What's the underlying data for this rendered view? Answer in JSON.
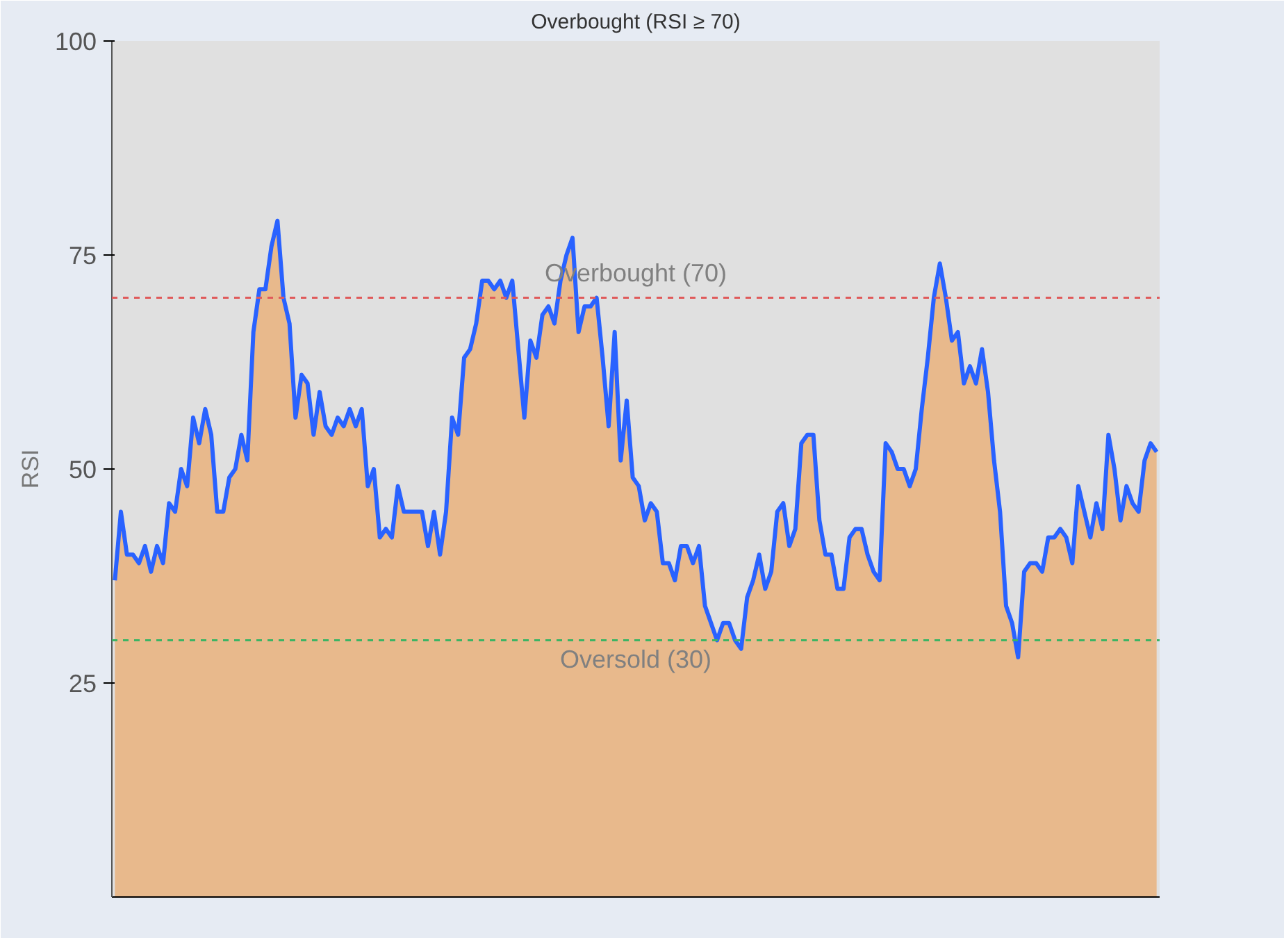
{
  "chart_data": {
    "type": "area",
    "title": "Overbought (RSI ≥ 70)",
    "ylabel": "RSI",
    "categories": [
      null,
      null,
      null,
      null,
      null,
      null,
      null,
      null,
      null,
      null,
      null,
      null,
      null,
      null,
      null,
      null,
      null,
      null,
      null,
      null,
      null,
      null,
      null,
      null,
      null,
      null,
      null,
      null,
      null,
      null,
      null,
      null,
      null,
      null,
      null,
      null,
      null,
      null,
      null,
      null,
      null,
      null,
      null,
      null,
      null,
      null,
      null,
      null,
      null,
      null,
      null,
      null,
      null,
      null,
      null,
      null,
      null,
      null,
      null,
      null,
      null,
      null,
      null,
      null,
      null,
      null,
      null,
      null,
      null,
      null,
      null,
      null,
      null,
      null,
      null,
      null,
      null,
      null,
      null,
      null,
      null,
      null,
      null,
      null,
      null,
      null,
      null,
      null,
      null,
      null,
      null,
      null,
      null,
      null,
      null,
      null,
      null,
      null,
      null,
      null,
      null,
      null,
      null,
      null,
      null,
      null,
      null,
      null,
      null,
      null,
      null,
      null,
      null,
      null,
      null,
      null,
      null,
      null,
      null,
      null,
      null,
      null,
      null,
      null,
      null,
      null,
      null,
      null,
      null,
      null,
      null,
      null,
      null,
      null,
      null,
      null,
      null,
      null,
      null,
      null,
      null,
      null,
      null,
      null,
      null,
      null,
      null,
      null,
      null,
      null,
      null,
      null,
      null,
      null,
      null,
      null,
      null,
      null,
      null,
      null,
      null,
      null,
      null,
      null,
      null,
      null,
      null,
      null,
      null,
      null,
      null,
      null,
      null,
      null
    ],
    "series": [
      {
        "color": "#e9b27c",
        "values": [
          37,
          45,
          40,
          40,
          39,
          41,
          38,
          41,
          39,
          46,
          45,
          50,
          48,
          56,
          53,
          57,
          54,
          45,
          45,
          49,
          50,
          54,
          51,
          66,
          71,
          71,
          76,
          79,
          70,
          67,
          56,
          61,
          60,
          54,
          59,
          55,
          54,
          56,
          55,
          57,
          55,
          57,
          48,
          50,
          42,
          43,
          42,
          48,
          45,
          45,
          45,
          45,
          41,
          45,
          40,
          45,
          56,
          54,
          63,
          64,
          67,
          72,
          72,
          71,
          72,
          70,
          72,
          64,
          56,
          65,
          63,
          68,
          69,
          67,
          72,
          75,
          77,
          66,
          69,
          69,
          70,
          63,
          55,
          66,
          51,
          58,
          49,
          48,
          44,
          46,
          45,
          39,
          39,
          37,
          41,
          41,
          39,
          41,
          34,
          32,
          30,
          32,
          32,
          30,
          29,
          35,
          37,
          40,
          36,
          38,
          45,
          46,
          41,
          43,
          53,
          54,
          54,
          44,
          40,
          40,
          36,
          36,
          42,
          43,
          43,
          40,
          38,
          37,
          53,
          52,
          50,
          50,
          48,
          50,
          57,
          63,
          70,
          74,
          70,
          65,
          66,
          60,
          62,
          60,
          64,
          59,
          51,
          45,
          34,
          32,
          28,
          38,
          39,
          39,
          38,
          42,
          42,
          43,
          42,
          39,
          48,
          45,
          42,
          46,
          43,
          54,
          50,
          44,
          48,
          46,
          45,
          51,
          53,
          52
        ]
      },
      {
        "type": "line",
        "color": "#2962ff",
        "values": [
          37,
          45,
          40,
          40,
          39,
          41,
          38,
          41,
          39,
          46,
          45,
          50,
          48,
          56,
          53,
          57,
          54,
          45,
          45,
          49,
          50,
          54,
          51,
          66,
          71,
          71,
          76,
          79,
          70,
          67,
          56,
          61,
          60,
          54,
          59,
          55,
          54,
          56,
          55,
          57,
          55,
          57,
          48,
          50,
          42,
          43,
          42,
          48,
          45,
          45,
          45,
          45,
          41,
          45,
          40,
          45,
          56,
          54,
          63,
          64,
          67,
          72,
          72,
          71,
          72,
          70,
          72,
          64,
          56,
          65,
          63,
          68,
          69,
          67,
          72,
          75,
          77,
          66,
          69,
          69,
          70,
          63,
          55,
          66,
          51,
          58,
          49,
          48,
          44,
          46,
          45,
          39,
          39,
          37,
          41,
          41,
          39,
          41,
          34,
          32,
          30,
          32,
          32,
          30,
          29,
          35,
          37,
          40,
          36,
          38,
          45,
          46,
          41,
          43,
          53,
          54,
          54,
          44,
          40,
          40,
          36,
          36,
          42,
          43,
          43,
          40,
          38,
          37,
          53,
          52,
          50,
          50,
          48,
          50,
          57,
          63,
          70,
          74,
          70,
          65,
          66,
          60,
          62,
          60,
          64,
          59,
          51,
          45,
          34,
          32,
          28,
          38,
          39,
          39,
          38,
          42,
          42,
          43,
          42,
          39,
          48,
          45,
          42,
          46,
          43,
          54,
          50,
          44,
          48,
          46,
          45,
          51,
          53,
          52
        ]
      }
    ],
    "ylim": [
      0,
      100
    ],
    "yticks": [
      25,
      50,
      75,
      100
    ],
    "tick_labels": "y",
    "ref_lines": [
      {
        "axis": "y",
        "value": 70,
        "label": "Overbought (70)",
        "color": "#e05a5a",
        "line_style": "dashed"
      },
      {
        "axis": "y",
        "value": 30,
        "label": "Oversold (30)",
        "color": "#3cb464",
        "line_style": "dashed"
      }
    ]
  }
}
